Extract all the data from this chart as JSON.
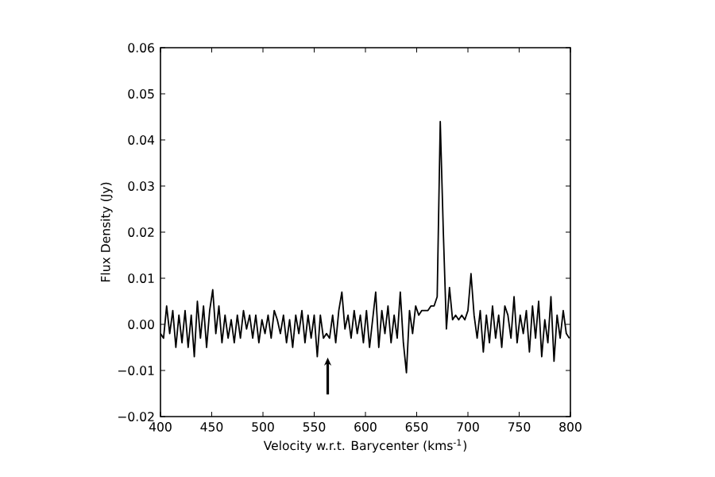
{
  "chart_data": {
    "type": "line",
    "xlabel": "Velocity w.r.t. Barycenter (kms$^{-1}$)",
    "ylabel": "Flux Density (Jy)",
    "xlim": [
      400,
      800
    ],
    "ylim": [
      -0.02,
      0.06
    ],
    "xticks": [
      400,
      450,
      500,
      550,
      600,
      650,
      700,
      750,
      800
    ],
    "yticks": [
      {
        "value": -0.02,
        "label": "−0.02"
      },
      {
        "value": -0.01,
        "label": "−0.01"
      },
      {
        "value": 0.0,
        "label": "0.00"
      },
      {
        "value": 0.01,
        "label": "0.01"
      },
      {
        "value": 0.02,
        "label": "0.02"
      },
      {
        "value": 0.03,
        "label": "0.03"
      },
      {
        "value": 0.04,
        "label": "0.04"
      },
      {
        "value": 0.05,
        "label": "0.05"
      },
      {
        "value": 0.06,
        "label": "0.06"
      }
    ],
    "x": [
      400,
      403,
      406,
      409,
      412,
      415,
      418,
      421,
      424,
      427,
      430,
      433,
      436,
      439,
      442,
      445,
      448,
      451,
      454,
      457,
      460,
      463,
      466,
      469,
      472,
      475,
      478,
      481,
      484,
      487,
      490,
      493,
      496,
      499,
      502,
      505,
      508,
      511,
      514,
      517,
      520,
      523,
      526,
      529,
      532,
      535,
      538,
      541,
      544,
      547,
      550,
      553,
      556,
      559,
      562,
      565,
      568,
      571,
      574,
      577,
      580,
      583,
      586,
      589,
      592,
      595,
      598,
      601,
      604,
      607,
      610,
      613,
      616,
      619,
      622,
      625,
      628,
      631,
      634,
      637,
      640,
      643,
      646,
      649,
      652,
      655,
      658,
      661,
      664,
      667,
      670,
      673,
      676,
      679,
      682,
      685,
      688,
      691,
      694,
      697,
      700,
      703,
      706,
      709,
      712,
      715,
      718,
      721,
      724,
      727,
      730,
      733,
      736,
      739,
      742,
      745,
      748,
      751,
      754,
      757,
      760,
      763,
      766,
      769,
      772,
      775,
      778,
      781,
      784,
      787,
      790,
      793,
      796,
      799
    ],
    "series": [
      {
        "color": "#000000",
        "values": [
          -0.002,
          -0.003,
          0.004,
          -0.002,
          0.003,
          -0.005,
          0.002,
          -0.004,
          0.003,
          -0.005,
          0.002,
          -0.007,
          0.005,
          -0.003,
          0.004,
          -0.005,
          0.003,
          0.0075,
          -0.002,
          0.004,
          -0.004,
          0.002,
          -0.003,
          0.001,
          -0.004,
          0.002,
          -0.003,
          0.003,
          -0.001,
          0.002,
          -0.003,
          0.002,
          -0.004,
          0.001,
          -0.002,
          0.002,
          -0.003,
          0.003,
          0.001,
          -0.002,
          0.002,
          -0.004,
          0.001,
          -0.005,
          0.002,
          -0.002,
          0.003,
          -0.004,
          0.002,
          -0.003,
          0.002,
          -0.007,
          0.002,
          -0.003,
          -0.002,
          -0.003,
          0.002,
          -0.004,
          0.003,
          0.007,
          -0.001,
          0.002,
          -0.003,
          0.003,
          -0.002,
          0.002,
          -0.004,
          0.003,
          -0.005,
          0.001,
          0.007,
          -0.005,
          0.003,
          -0.002,
          0.004,
          -0.004,
          0.002,
          -0.003,
          0.007,
          -0.004,
          -0.0105,
          0.003,
          -0.002,
          0.004,
          0.002,
          0.003,
          0.003,
          0.003,
          0.004,
          0.004,
          0.006,
          0.044,
          0.02,
          -0.001,
          0.008,
          0.001,
          0.002,
          0.001,
          0.002,
          0.001,
          0.003,
          0.011,
          0.002,
          -0.003,
          0.003,
          -0.006,
          0.002,
          -0.004,
          0.004,
          -0.003,
          0.002,
          -0.005,
          0.004,
          0.002,
          -0.003,
          0.006,
          -0.004,
          0.002,
          -0.002,
          0.003,
          -0.006,
          0.004,
          -0.003,
          0.005,
          -0.007,
          0.001,
          -0.004,
          0.006,
          -0.008,
          0.002,
          -0.003,
          0.003,
          -0.002,
          -0.003
        ]
      }
    ]
  }
}
